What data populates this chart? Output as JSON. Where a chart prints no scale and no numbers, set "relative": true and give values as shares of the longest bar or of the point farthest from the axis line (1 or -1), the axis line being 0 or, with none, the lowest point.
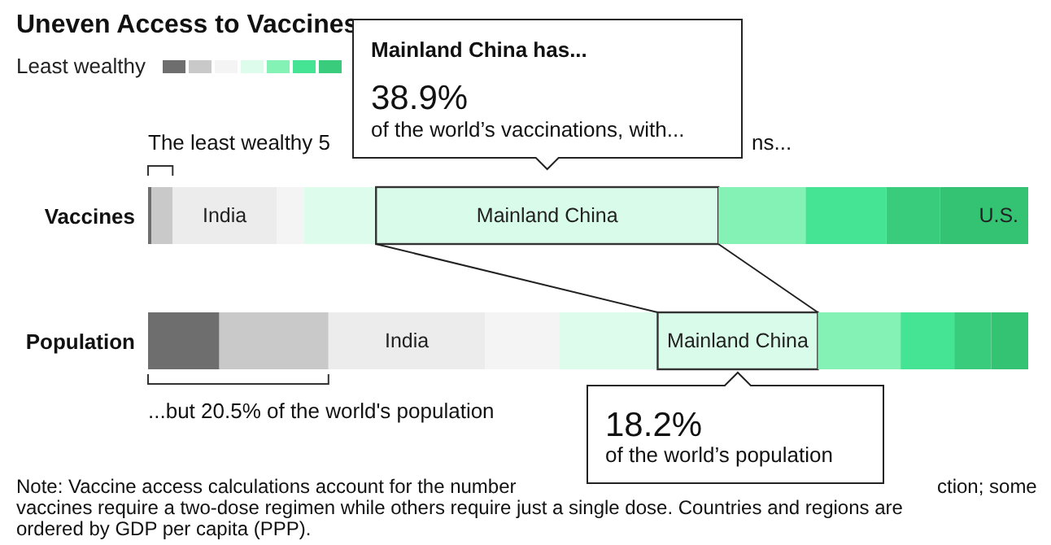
{
  "chart_data": {
    "type": "bar",
    "title": "Uneven Access to Vaccines",
    "legend_title": "Least wealthy",
    "legend": "top left",
    "orientation": "horizontal",
    "stacked": true,
    "relative": true,
    "categories": [
      "Vaccines",
      "Population"
    ],
    "series": [
      {
        "color": "#6e6e6e",
        "values": [
          0.004,
          0.081
        ]
      },
      {
        "color": "#c9c9c9",
        "values": [
          0.024,
          0.124
        ]
      },
      {
        "name": "India",
        "color": "#ececec",
        "values": [
          0.118,
          0.178
        ]
      },
      {
        "color": "#f4f4f4",
        "values": [
          0.031,
          0.084
        ]
      },
      {
        "color": "#ddfcec",
        "values": [
          0.082,
          0.112
        ]
      },
      {
        "name": "Mainland China",
        "color": "#d9fbea",
        "values": [
          0.389,
          0.182
        ]
      },
      {
        "color": "#85f2b5",
        "values": [
          0.099,
          0.094
        ]
      },
      {
        "color": "#45e495",
        "values": [
          0.092,
          0.061
        ]
      },
      {
        "color": "#38cc7c",
        "values": [
          0.061,
          0.042
        ]
      },
      {
        "name": "U.S.",
        "color": "#33c373",
        "values": [
          0.1,
          0.042
        ]
      }
    ],
    "annotations": [
      "Mainland China has...",
      "38.9%",
      "of the world’s vaccinations, with...",
      "The least wealthy 5",
      "ns...",
      "...but 20.5% of the world's population",
      "18.2%",
      "of the world’s population",
      "Note: Vaccine access calculations account for the number",
      "ction; some",
      "vaccines require a two-dose regimen while others require just a single dose. Countries and regions are",
      "ordered by GDP per capita (PPP)."
    ]
  }
}
